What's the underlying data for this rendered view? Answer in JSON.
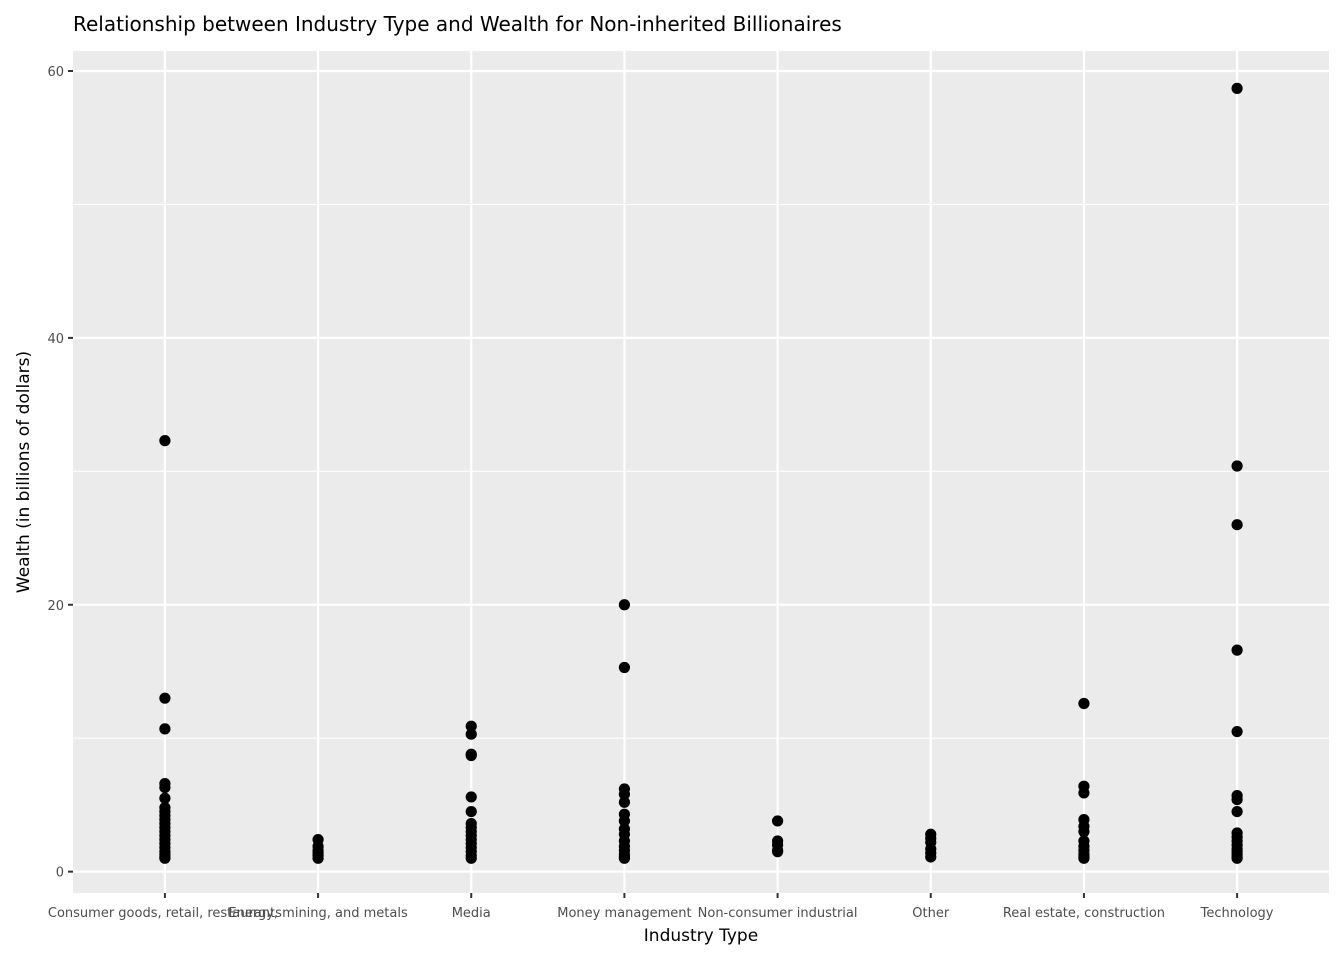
{
  "chart_data": {
    "type": "scatter",
    "title": "Relationship between Industry Type and Wealth for Non-inherited Billionaires",
    "xlabel": "Industry Type",
    "ylabel": "Wealth (in billions of dollars)",
    "categories": [
      "Consumer goods, retail, restaurants",
      "Energy, mining, and metals",
      "Media",
      "Money management",
      "Non-consumer industrial",
      "Other",
      "Real estate, construction",
      "Technology"
    ],
    "ylim": [
      -1.6,
      61.5
    ],
    "yticks": [
      0,
      20,
      40,
      60
    ],
    "ytick_labels": [
      "0",
      "20",
      "40",
      "60"
    ],
    "grid": true,
    "background_color": "#EBEBEB",
    "gridline_color": "#FFFFFF",
    "point_color": "#000000",
    "points": [
      {
        "x": "Consumer goods, retail, restaurants",
        "y": 32.3
      },
      {
        "x": "Consumer goods, retail, restaurants",
        "y": 13.0
      },
      {
        "x": "Consumer goods, retail, restaurants",
        "y": 10.7
      },
      {
        "x": "Consumer goods, retail, restaurants",
        "y": 6.6
      },
      {
        "x": "Consumer goods, retail, restaurants",
        "y": 6.3
      },
      {
        "x": "Consumer goods, retail, restaurants",
        "y": 5.5
      },
      {
        "x": "Consumer goods, retail, restaurants",
        "y": 4.8
      },
      {
        "x": "Consumer goods, retail, restaurants",
        "y": 4.5
      },
      {
        "x": "Consumer goods, retail, restaurants",
        "y": 4.2
      },
      {
        "x": "Consumer goods, retail, restaurants",
        "y": 3.9
      },
      {
        "x": "Consumer goods, retail, restaurants",
        "y": 3.6
      },
      {
        "x": "Consumer goods, retail, restaurants",
        "y": 3.3
      },
      {
        "x": "Consumer goods, retail, restaurants",
        "y": 3.0
      },
      {
        "x": "Consumer goods, retail, restaurants",
        "y": 2.7
      },
      {
        "x": "Consumer goods, retail, restaurants",
        "y": 2.4
      },
      {
        "x": "Consumer goods, retail, restaurants",
        "y": 2.1
      },
      {
        "x": "Consumer goods, retail, restaurants",
        "y": 1.8
      },
      {
        "x": "Consumer goods, retail, restaurants",
        "y": 1.5
      },
      {
        "x": "Consumer goods, retail, restaurants",
        "y": 1.3
      },
      {
        "x": "Consumer goods, retail, restaurants",
        "y": 1.1
      },
      {
        "x": "Consumer goods, retail, restaurants",
        "y": 1.0
      },
      {
        "x": "Energy, mining, and metals",
        "y": 2.4
      },
      {
        "x": "Energy, mining, and metals",
        "y": 1.9
      },
      {
        "x": "Energy, mining, and metals",
        "y": 1.6
      },
      {
        "x": "Energy, mining, and metals",
        "y": 1.4
      },
      {
        "x": "Energy, mining, and metals",
        "y": 1.2
      },
      {
        "x": "Energy, mining, and metals",
        "y": 1.0
      },
      {
        "x": "Media",
        "y": 10.9
      },
      {
        "x": "Media",
        "y": 10.3
      },
      {
        "x": "Media",
        "y": 8.8
      },
      {
        "x": "Media",
        "y": 8.7
      },
      {
        "x": "Media",
        "y": 5.6
      },
      {
        "x": "Media",
        "y": 4.5
      },
      {
        "x": "Media",
        "y": 3.6
      },
      {
        "x": "Media",
        "y": 3.3
      },
      {
        "x": "Media",
        "y": 3.0
      },
      {
        "x": "Media",
        "y": 2.7
      },
      {
        "x": "Media",
        "y": 2.4
      },
      {
        "x": "Media",
        "y": 2.1
      },
      {
        "x": "Media",
        "y": 1.8
      },
      {
        "x": "Media",
        "y": 1.5
      },
      {
        "x": "Media",
        "y": 1.2
      },
      {
        "x": "Media",
        "y": 1.0
      },
      {
        "x": "Money management",
        "y": 20.0
      },
      {
        "x": "Money management",
        "y": 15.3
      },
      {
        "x": "Money management",
        "y": 6.2
      },
      {
        "x": "Money management",
        "y": 5.8
      },
      {
        "x": "Money management",
        "y": 5.2
      },
      {
        "x": "Money management",
        "y": 4.3
      },
      {
        "x": "Money management",
        "y": 3.8
      },
      {
        "x": "Money management",
        "y": 3.2
      },
      {
        "x": "Money management",
        "y": 2.8
      },
      {
        "x": "Money management",
        "y": 2.3
      },
      {
        "x": "Money management",
        "y": 1.9
      },
      {
        "x": "Money management",
        "y": 1.6
      },
      {
        "x": "Money management",
        "y": 1.3
      },
      {
        "x": "Money management",
        "y": 1.1
      },
      {
        "x": "Money management",
        "y": 1.0
      },
      {
        "x": "Non-consumer industrial",
        "y": 3.8
      },
      {
        "x": "Non-consumer industrial",
        "y": 2.3
      },
      {
        "x": "Non-consumer industrial",
        "y": 2.0
      },
      {
        "x": "Non-consumer industrial",
        "y": 1.6
      },
      {
        "x": "Non-consumer industrial",
        "y": 1.5
      },
      {
        "x": "Other",
        "y": 2.8
      },
      {
        "x": "Other",
        "y": 2.5
      },
      {
        "x": "Other",
        "y": 2.2
      },
      {
        "x": "Other",
        "y": 1.7
      },
      {
        "x": "Other",
        "y": 1.4
      },
      {
        "x": "Other",
        "y": 1.1
      },
      {
        "x": "Real estate, construction",
        "y": 12.6
      },
      {
        "x": "Real estate, construction",
        "y": 6.4
      },
      {
        "x": "Real estate, construction",
        "y": 5.9
      },
      {
        "x": "Real estate, construction",
        "y": 3.9
      },
      {
        "x": "Real estate, construction",
        "y": 3.4
      },
      {
        "x": "Real estate, construction",
        "y": 3.0
      },
      {
        "x": "Real estate, construction",
        "y": 2.3
      },
      {
        "x": "Real estate, construction",
        "y": 1.9
      },
      {
        "x": "Real estate, construction",
        "y": 1.6
      },
      {
        "x": "Real estate, construction",
        "y": 1.3
      },
      {
        "x": "Real estate, construction",
        "y": 1.1
      },
      {
        "x": "Real estate, construction",
        "y": 1.0
      },
      {
        "x": "Technology",
        "y": 58.7
      },
      {
        "x": "Technology",
        "y": 30.4
      },
      {
        "x": "Technology",
        "y": 26.0
      },
      {
        "x": "Technology",
        "y": 16.6
      },
      {
        "x": "Technology",
        "y": 10.5
      },
      {
        "x": "Technology",
        "y": 5.7
      },
      {
        "x": "Technology",
        "y": 5.4
      },
      {
        "x": "Technology",
        "y": 4.5
      },
      {
        "x": "Technology",
        "y": 2.9
      },
      {
        "x": "Technology",
        "y": 2.6
      },
      {
        "x": "Technology",
        "y": 2.3
      },
      {
        "x": "Technology",
        "y": 2.0
      },
      {
        "x": "Technology",
        "y": 1.7
      },
      {
        "x": "Technology",
        "y": 1.5
      },
      {
        "x": "Technology",
        "y": 1.3
      },
      {
        "x": "Technology",
        "y": 1.1
      },
      {
        "x": "Technology",
        "y": 1.0
      }
    ]
  }
}
